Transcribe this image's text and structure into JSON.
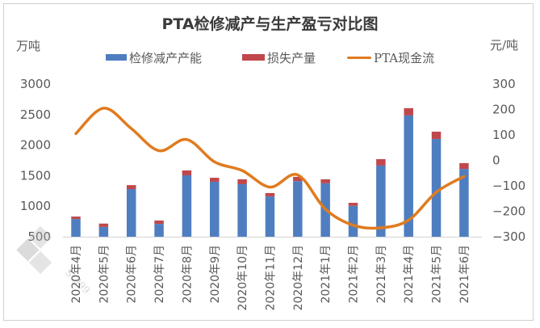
{
  "chart_data": {
    "type": "bar",
    "title": "PTA检修减产与生产盈亏对比图",
    "ylabel_left": "万吨",
    "ylabel_right": "元/吨",
    "categories": [
      "2020年4月",
      "2020年5月",
      "2020年6月",
      "2020年7月",
      "2020年8月",
      "2020年9月",
      "2020年10月",
      "2020年11月",
      "2020年12月",
      "2021年1月",
      "2021年2月",
      "2021年3月",
      "2021年4月",
      "2021年5月",
      "2021年6月"
    ],
    "y_left": {
      "min": 500,
      "max": 3000,
      "ticks": [
        3000,
        2500,
        2000,
        1500,
        1000,
        500
      ]
    },
    "y_right": {
      "min": -300,
      "max": 300,
      "ticks": [
        300,
        200,
        100,
        0,
        -100,
        -200,
        -300
      ]
    },
    "legend_position": "top",
    "grid": false,
    "series": [
      {
        "name": "检修减产产能",
        "type": "bar",
        "stacked": true,
        "axis": "left",
        "color": "#4f7ec0",
        "values": [
          790,
          660,
          1280,
          710,
          1505,
          1400,
          1360,
          1160,
          1410,
          1375,
          1005,
          1665,
          2485,
          2100,
          1610
        ]
      },
      {
        "name": "损失产量",
        "type": "bar",
        "stacked": true,
        "axis": "left",
        "color": "#c0484c",
        "values": [
          40,
          55,
          65,
          55,
          80,
          65,
          80,
          55,
          70,
          65,
          50,
          105,
          120,
          120,
          95
        ]
      },
      {
        "name": "PTA现金流",
        "type": "line",
        "smooth": true,
        "axis": "right",
        "color": "#e07b1f",
        "values": [
          105,
          205,
          125,
          38,
          82,
          -6,
          -40,
          -105,
          -57,
          -192,
          -255,
          -265,
          -235,
          -125,
          -63
        ]
      }
    ]
  },
  "legend": [
    {
      "label": "检修减产产能",
      "color": "#4f7ec0",
      "kind": "bar"
    },
    {
      "label": "损失产量",
      "color": "#c0484c",
      "kind": "bar"
    },
    {
      "label": "PTA现金流",
      "color": "#e07b1f",
      "kind": "line"
    }
  ],
  "watermark": "SCI99"
}
